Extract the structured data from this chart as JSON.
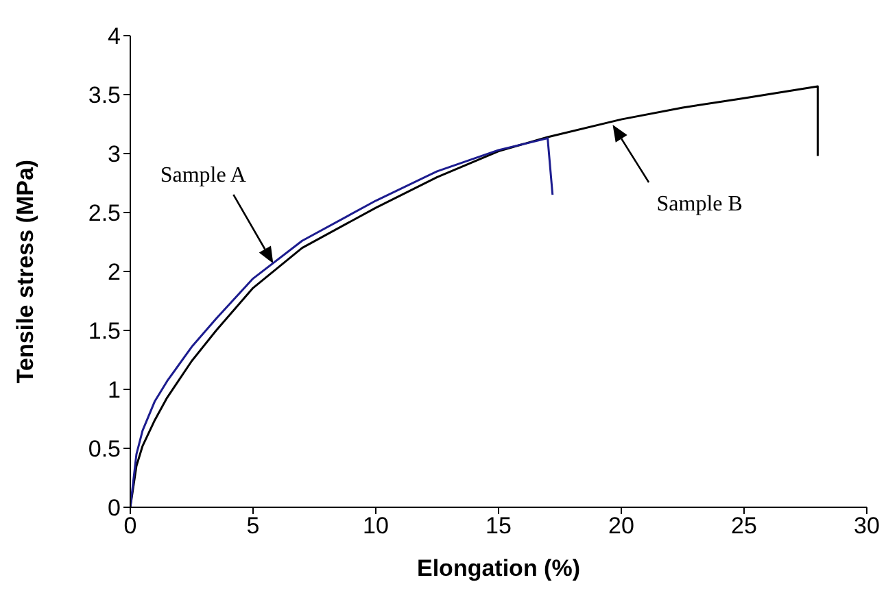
{
  "chart_data": {
    "type": "line",
    "xlabel": "Elongation  (%)",
    "ylabel": "Tensile stress  (MPa)",
    "xlim": [
      0,
      30
    ],
    "xticks": [
      0,
      5,
      10,
      15,
      20,
      25,
      30
    ],
    "ylim": [
      0,
      4
    ],
    "yticks": [
      0,
      0.5,
      1,
      1.5,
      2,
      2.5,
      3,
      3.5,
      4
    ],
    "marker": "none",
    "line_style": "solid",
    "series": [
      {
        "color": "#000000",
        "x": [
          0,
          0.25,
          0.5,
          1,
          1.5,
          2.5,
          3.5,
          5,
          7,
          10,
          12.5,
          15,
          17,
          20,
          22.5,
          25,
          28,
          28
        ],
        "values": [
          0,
          0.35,
          0.52,
          0.74,
          0.93,
          1.24,
          1.5,
          1.86,
          2.2,
          2.54,
          2.8,
          3.02,
          3.14,
          3.29,
          3.39,
          3.47,
          3.57,
          2.98
        ]
      },
      {
        "color": "#1c1c8f",
        "x": [
          0,
          0.25,
          0.5,
          1,
          1.5,
          2.5,
          3.5,
          5,
          7,
          10,
          12.5,
          15,
          17,
          17.2
        ],
        "values": [
          0,
          0.45,
          0.65,
          0.9,
          1.07,
          1.36,
          1.6,
          1.94,
          2.26,
          2.6,
          2.85,
          3.03,
          3.13,
          2.65
        ]
      }
    ],
    "annotations": [
      "Sample A",
      "Sample B"
    ]
  }
}
